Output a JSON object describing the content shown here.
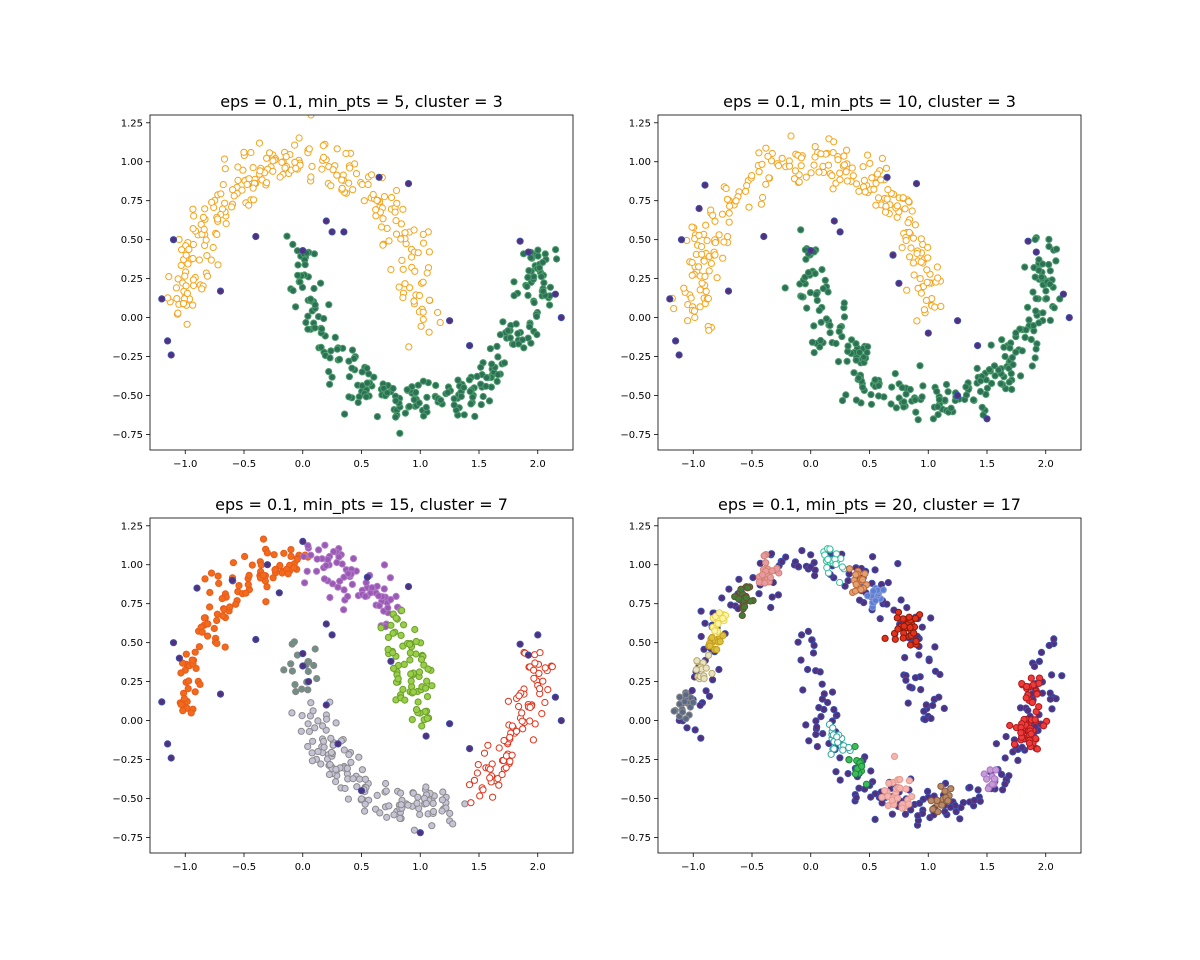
{
  "figure": {
    "background": "#ffffff",
    "noise_color": "#55307a",
    "noise_edge": "#3a4fb0"
  },
  "chart_data": [
    {
      "type": "scatter",
      "title": "eps = 0.1, min_pts = 5, cluster = 3",
      "xlim": [
        -1.3,
        2.3
      ],
      "ylim": [
        -0.85,
        1.3
      ],
      "xticks": [
        -1.0,
        -0.5,
        0.0,
        0.5,
        1.0,
        1.5,
        2.0
      ],
      "xtick_labels": [
        "−1.0",
        "−0.5",
        "0.0",
        "0.5",
        "1.0",
        "1.5",
        "2.0"
      ],
      "yticks": [
        -0.75,
        -0.5,
        -0.25,
        0.0,
        0.25,
        0.5,
        0.75,
        1.0,
        1.25
      ],
      "ytick_labels": [
        "−0.75",
        "−0.50",
        "−0.25",
        "0.00",
        "0.25",
        "0.50",
        "0.75",
        "1.00",
        "1.25"
      ],
      "grid": false,
      "series": [
        {
          "role": "upper-moon",
          "from_t": 0.0,
          "to_t": 1.0,
          "count": 260,
          "fill": "#ffffff",
          "edge": "#f5a31a"
        },
        {
          "role": "lower-moon",
          "from_t": 0.0,
          "to_t": 1.0,
          "count": 270,
          "fill": "#2e6f57",
          "edge": "#4b9e6a"
        }
      ],
      "noise": [
        [
          -1.2,
          0.12
        ],
        [
          -1.1,
          0.5
        ],
        [
          -1.15,
          -0.15
        ],
        [
          -1.12,
          -0.24
        ],
        [
          -0.7,
          0.17
        ],
        [
          -0.4,
          0.52
        ],
        [
          0.2,
          0.62
        ],
        [
          0.0,
          0.43
        ],
        [
          0.9,
          0.86
        ],
        [
          0.25,
          0.55
        ],
        [
          1.25,
          -0.02
        ],
        [
          1.42,
          -0.18
        ],
        [
          1.85,
          0.49
        ],
        [
          1.92,
          0.42
        ],
        [
          2.15,
          0.15
        ],
        [
          2.2,
          0.0
        ],
        [
          0.35,
          0.55
        ],
        [
          0.65,
          0.9
        ]
      ]
    },
    {
      "type": "scatter",
      "title": "eps = 0.1, min_pts = 10, cluster = 3",
      "xlim": [
        -1.3,
        2.3
      ],
      "ylim": [
        -0.85,
        1.3
      ],
      "xticks": [
        -1.0,
        -0.5,
        0.0,
        0.5,
        1.0,
        1.5,
        2.0
      ],
      "xtick_labels": [
        "−1.0",
        "−0.5",
        "0.0",
        "0.5",
        "1.0",
        "1.5",
        "2.0"
      ],
      "yticks": [
        -0.75,
        -0.5,
        -0.25,
        0.0,
        0.25,
        0.5,
        0.75,
        1.0,
        1.25
      ],
      "ytick_labels": [
        "−0.75",
        "−0.50",
        "−0.25",
        "0.00",
        "0.25",
        "0.50",
        "0.75",
        "1.00",
        "1.25"
      ],
      "grid": false,
      "series": [
        {
          "role": "upper-moon",
          "from_t": 0.0,
          "to_t": 1.0,
          "count": 250,
          "fill": "#ffffff",
          "edge": "#f5a31a"
        },
        {
          "role": "lower-moon",
          "from_t": 0.0,
          "to_t": 1.0,
          "count": 260,
          "fill": "#2e6f57",
          "edge": "#4b9e6a"
        }
      ],
      "noise": [
        [
          -1.2,
          0.12
        ],
        [
          -1.1,
          0.5
        ],
        [
          -1.15,
          -0.15
        ],
        [
          -1.12,
          -0.24
        ],
        [
          -0.7,
          0.17
        ],
        [
          -0.4,
          0.52
        ],
        [
          -0.9,
          0.85
        ],
        [
          -0.95,
          0.7
        ],
        [
          0.2,
          0.62
        ],
        [
          0.0,
          0.43
        ],
        [
          0.9,
          0.86
        ],
        [
          0.25,
          0.55
        ],
        [
          1.25,
          -0.02
        ],
        [
          1.42,
          -0.18
        ],
        [
          1.85,
          0.49
        ],
        [
          1.92,
          0.42
        ],
        [
          2.15,
          0.15
        ],
        [
          2.2,
          0.0
        ],
        [
          0.65,
          0.9
        ],
        [
          0.7,
          0.4
        ],
        [
          0.75,
          0.22
        ],
        [
          1.0,
          -0.1
        ],
        [
          1.25,
          -0.5
        ],
        [
          1.5,
          -0.65
        ]
      ]
    },
    {
      "type": "scatter",
      "title": "eps = 0.1, min_pts = 15, cluster = 7",
      "xlim": [
        -1.3,
        2.3
      ],
      "ylim": [
        -0.85,
        1.3
      ],
      "xticks": [
        -1.0,
        -0.5,
        0.0,
        0.5,
        1.0,
        1.5,
        2.0
      ],
      "xtick_labels": [
        "−1.0",
        "−0.5",
        "0.0",
        "0.5",
        "1.0",
        "1.5",
        "2.0"
      ],
      "yticks": [
        -0.75,
        -0.5,
        -0.25,
        0.0,
        0.25,
        0.5,
        0.75,
        1.0,
        1.25
      ],
      "ytick_labels": [
        "−0.75",
        "−0.50",
        "−0.25",
        "0.00",
        "0.25",
        "0.50",
        "0.75",
        "1.00",
        "1.25"
      ],
      "grid": false,
      "series": [
        {
          "role": "upper-moon",
          "from_t": 0.5,
          "to_t": 1.0,
          "count": 110,
          "fill": "#f26b1d",
          "edge": "#e85a1a"
        },
        {
          "role": "upper-moon",
          "from_t": 0.24,
          "to_t": 0.48,
          "count": 80,
          "fill": "#9b59b6",
          "edge": "#b07cc6"
        },
        {
          "role": "upper-moon",
          "from_t": 0.0,
          "to_t": 0.22,
          "count": 75,
          "fill": "#9acd48",
          "edge": "#6aa12a"
        },
        {
          "role": "lower-moon",
          "from_t": 0.0,
          "to_t": 0.1,
          "count": 18,
          "fill": "#6f8f86",
          "edge": "#888888"
        },
        {
          "role": "lower-moon",
          "from_t": 0.12,
          "to_t": 0.6,
          "count": 140,
          "fill": "#c7c3d6",
          "edge": "#8b8b8b"
        },
        {
          "role": "lower-moon",
          "from_t": 0.64,
          "to_t": 1.0,
          "count": 90,
          "fill": "#ffffff",
          "edge": "#e0331a"
        }
      ],
      "noise": [
        [
          -1.2,
          0.12
        ],
        [
          -1.1,
          0.5
        ],
        [
          -1.15,
          -0.15
        ],
        [
          -1.12,
          -0.24
        ],
        [
          -0.7,
          0.17
        ],
        [
          -0.4,
          0.52
        ],
        [
          -0.9,
          0.85
        ],
        [
          -1.05,
          0.4
        ],
        [
          -0.6,
          0.9
        ],
        [
          -0.3,
          1.0
        ],
        [
          -0.2,
          0.82
        ],
        [
          0.0,
          1.15
        ],
        [
          0.2,
          0.62
        ],
        [
          0.0,
          0.43
        ],
        [
          0.9,
          0.86
        ],
        [
          0.55,
          0.92
        ],
        [
          1.25,
          -0.02
        ],
        [
          1.42,
          -0.18
        ],
        [
          1.85,
          0.49
        ],
        [
          1.92,
          0.42
        ],
        [
          2.15,
          0.15
        ],
        [
          2.2,
          0.0
        ],
        [
          2.0,
          0.55
        ],
        [
          0.0,
          0.35
        ],
        [
          0.05,
          0.25
        ],
        [
          0.2,
          0.1
        ],
        [
          0.3,
          -0.15
        ],
        [
          0.5,
          -0.45
        ],
        [
          1.0,
          -0.72
        ],
        [
          1.05,
          -0.1
        ],
        [
          0.75,
          0.38
        ],
        [
          0.25,
          0.55
        ]
      ]
    },
    {
      "type": "scatter",
      "title": "eps = 0.1, min_pts = 20, cluster = 17",
      "xlim": [
        -1.3,
        2.3
      ],
      "ylim": [
        -0.85,
        1.3
      ],
      "xticks": [
        -1.0,
        -0.5,
        0.0,
        0.5,
        1.0,
        1.5,
        2.0
      ],
      "xtick_labels": [
        "−1.0",
        "−0.5",
        "0.0",
        "0.5",
        "1.0",
        "1.5",
        "2.0"
      ],
      "yticks": [
        -0.75,
        -0.5,
        -0.25,
        0.0,
        0.25,
        0.5,
        0.75,
        1.0,
        1.25
      ],
      "ytick_labels": [
        "−0.75",
        "−0.50",
        "−0.25",
        "0.00",
        "0.25",
        "0.50",
        "0.75",
        "1.00",
        "1.25"
      ],
      "grid": false,
      "series": [
        {
          "role": "blob",
          "cx": -1.08,
          "cy": 0.09,
          "r": 0.07,
          "count": 18,
          "fill": "#5a6a86",
          "edge": "#8b8b8b"
        },
        {
          "role": "blob",
          "cx": -0.92,
          "cy": 0.3,
          "r": 0.06,
          "count": 14,
          "fill": "#e8e4c2",
          "edge": "#b8a870"
        },
        {
          "role": "blob",
          "cx": -0.83,
          "cy": 0.5,
          "r": 0.06,
          "count": 14,
          "fill": "#d9c13e",
          "edge": "#c79a1e"
        },
        {
          "role": "blob",
          "cx": -0.78,
          "cy": 0.63,
          "r": 0.06,
          "count": 14,
          "fill": "#fff4a8",
          "edge": "#e6d44a"
        },
        {
          "role": "blob",
          "cx": -0.58,
          "cy": 0.77,
          "r": 0.08,
          "count": 22,
          "fill": "#3f7e3a",
          "edge": "#6b4f2e"
        },
        {
          "role": "blob",
          "cx": -0.4,
          "cy": 0.97,
          "r": 0.09,
          "count": 22,
          "fill": "#e89aa4",
          "edge": "#d4826e"
        },
        {
          "role": "blob",
          "cx": 0.18,
          "cy": 1.02,
          "r": 0.1,
          "count": 22,
          "fill": "#ffffff",
          "edge": "#2fbf9a"
        },
        {
          "role": "blob",
          "cx": 0.4,
          "cy": 0.9,
          "r": 0.07,
          "count": 16,
          "fill": "#e3a070",
          "edge": "#c06a3a"
        },
        {
          "role": "blob",
          "cx": 0.55,
          "cy": 0.8,
          "r": 0.06,
          "count": 14,
          "fill": "#5a7fd6",
          "edge": "#8a9ad6"
        },
        {
          "role": "blob",
          "cx": 0.8,
          "cy": 0.62,
          "r": 0.09,
          "count": 30,
          "fill": "#e0321c",
          "edge": "#8a1a0a"
        },
        {
          "role": "blob",
          "cx": 0.2,
          "cy": -0.12,
          "r": 0.1,
          "count": 22,
          "fill": "#ffffff",
          "edge": "#2ea6a0"
        },
        {
          "role": "blob",
          "cx": 0.42,
          "cy": -0.3,
          "r": 0.07,
          "count": 16,
          "fill": "#3bbb5b",
          "edge": "#1e8a3a"
        },
        {
          "role": "blob",
          "cx": 0.75,
          "cy": -0.48,
          "r": 0.11,
          "count": 28,
          "fill": "#f5b3b1",
          "edge": "#e59a8a"
        },
        {
          "role": "blob",
          "cx": 1.12,
          "cy": -0.5,
          "r": 0.07,
          "count": 14,
          "fill": "#b88a6a",
          "edge": "#8a5a3a"
        },
        {
          "role": "blob",
          "cx": 1.55,
          "cy": -0.38,
          "r": 0.06,
          "count": 12,
          "fill": "#c79ad9",
          "edge": "#a875c0"
        },
        {
          "role": "blob",
          "cx": 1.85,
          "cy": -0.05,
          "r": 0.11,
          "count": 40,
          "fill": "#ee3b3b",
          "edge": "#b01a1a"
        },
        {
          "role": "blob",
          "cx": 1.87,
          "cy": 0.2,
          "r": 0.08,
          "count": 18,
          "fill": "#ee3b3b",
          "edge": "#b01a1a"
        }
      ],
      "noise_arcs": [
        {
          "role": "upper-moon",
          "from_t": 0.0,
          "to_t": 1.0,
          "count": 150
        },
        {
          "role": "lower-moon",
          "from_t": 0.0,
          "to_t": 1.0,
          "count": 170
        }
      ]
    }
  ]
}
